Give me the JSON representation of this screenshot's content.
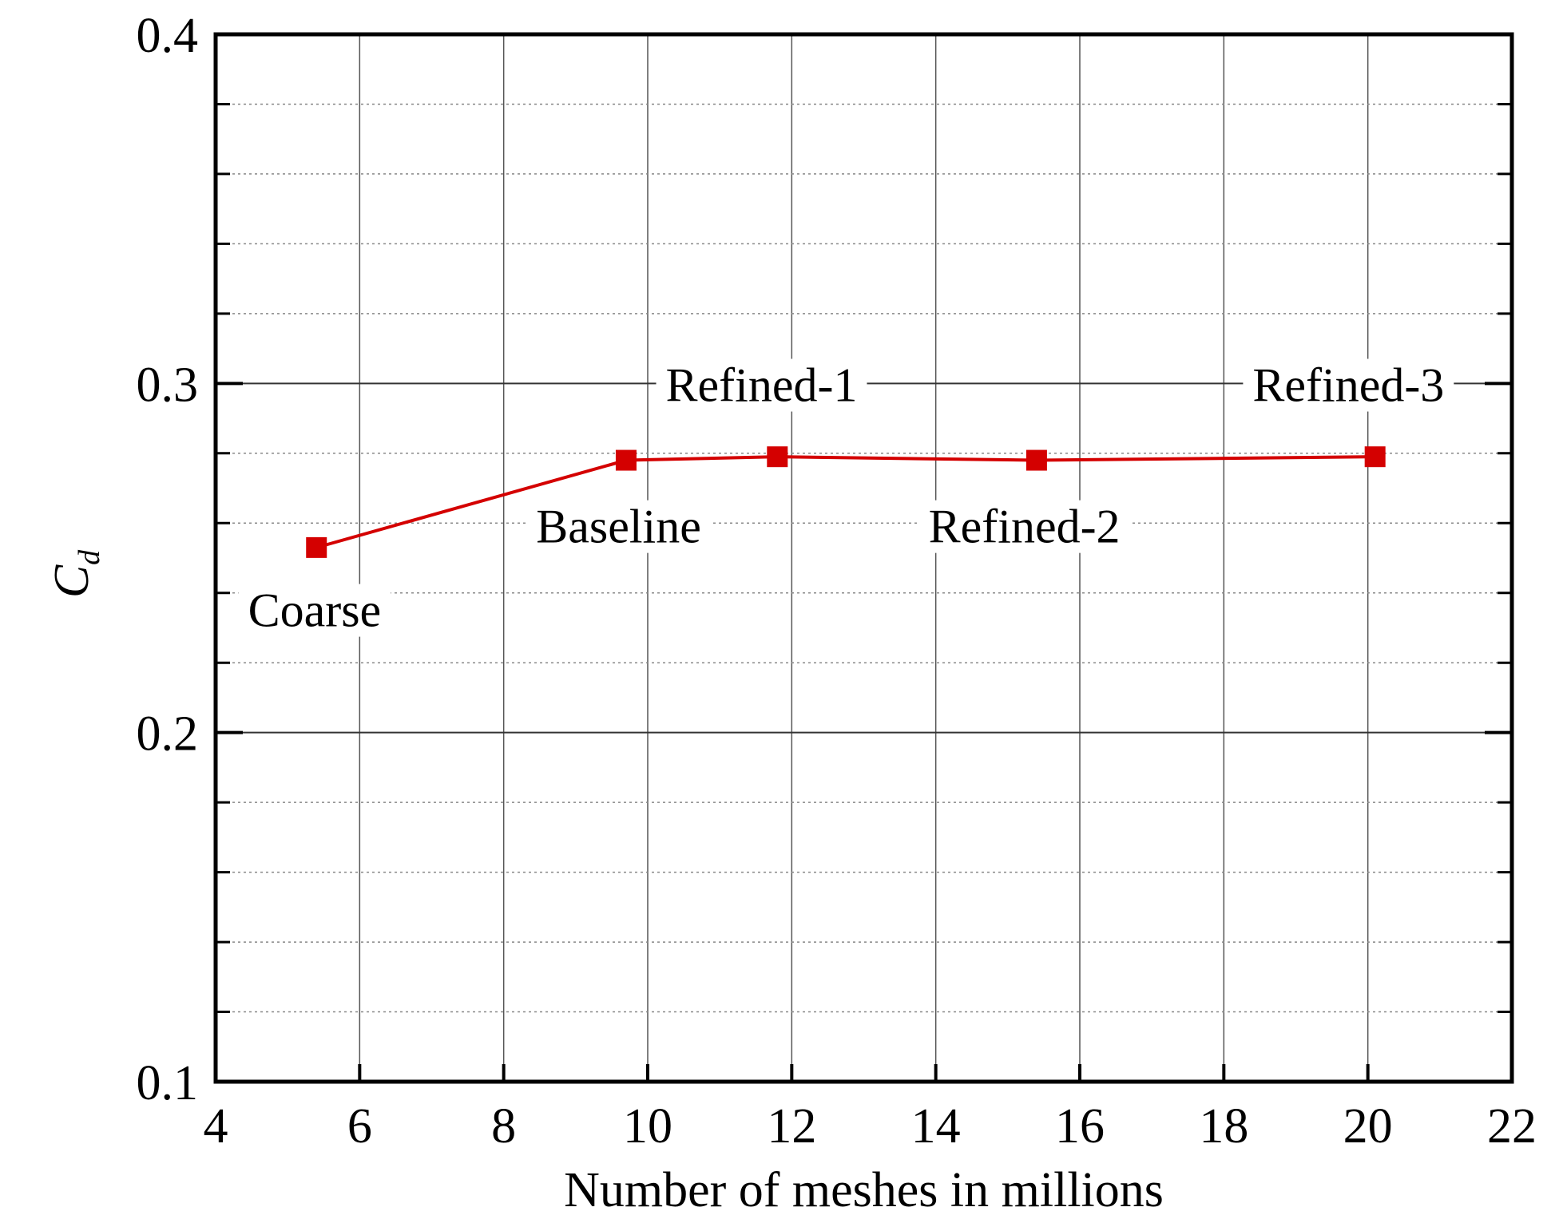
{
  "chart_data": {
    "type": "line",
    "xlabel": "Number of meshes in millions",
    "ylabel": "C",
    "ylabel_subscript": "d",
    "xlim": [
      4,
      22
    ],
    "ylim": [
      0.1,
      0.4
    ],
    "x_ticks": [
      "4",
      "6",
      "8",
      "10",
      "12",
      "14",
      "16",
      "18",
      "20",
      "22"
    ],
    "y_ticks": [
      "0.1",
      "0.2",
      "0.3",
      "0.4"
    ],
    "grid": true,
    "series": [
      {
        "color": "#d40000",
        "marker": "square",
        "x": [
          5.4,
          9.7,
          11.8,
          15.4,
          20.1
        ],
        "y": [
          0.253,
          0.278,
          0.279,
          0.278,
          0.279
        ]
      }
    ],
    "annotations": [
      {
        "text": "Coarse",
        "x": 4.45,
        "y": 0.235
      },
      {
        "text": "Baseline",
        "x": 8.45,
        "y": 0.259
      },
      {
        "text": "Refined-1",
        "x": 10.25,
        "y": 0.2995
      },
      {
        "text": "Refined-2",
        "x": 13.9,
        "y": 0.259
      },
      {
        "text": "Refined-3",
        "x": 18.4,
        "y": 0.2995
      }
    ]
  }
}
